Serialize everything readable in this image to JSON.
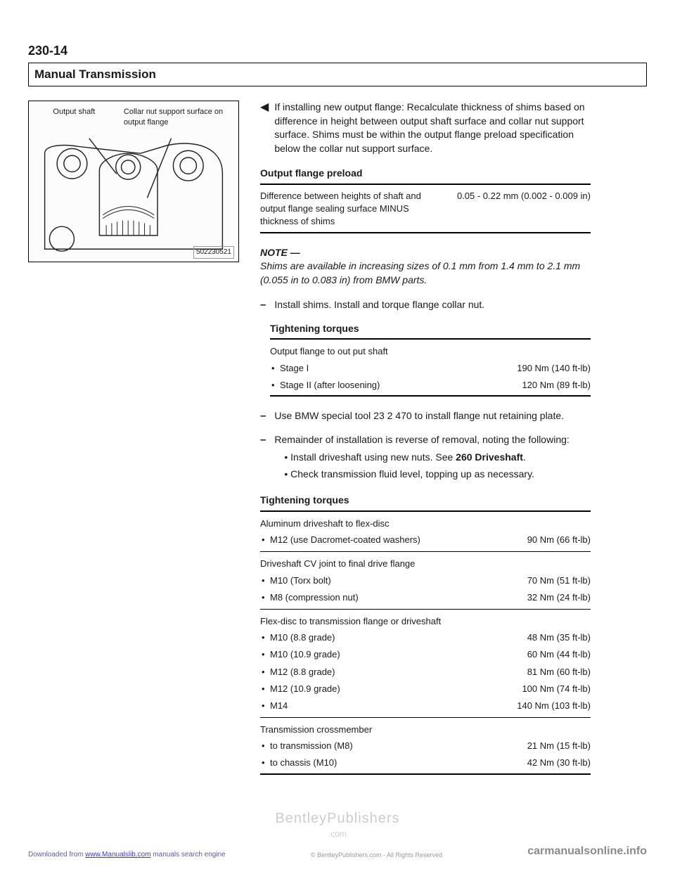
{
  "page_number": "230-14",
  "header": "Manual Transmission",
  "figure": {
    "label_left": "Output shaft",
    "label_right": "Collar nut support surface on output flange",
    "id": "502230521"
  },
  "arrow_para": "If installing new output flange: Recalculate thickness of shims based on difference in height between output shaft surface and collar nut support surface. Shims must be within the output flange preload specification below the collar nut support surface.",
  "preload": {
    "title": "Output flange preload",
    "label": "Difference between heights of shaft and output flange sealing surface MINUS thickness of shims",
    "value": "0.05 - 0.22 mm (0.002 - 0.009 in)"
  },
  "note": {
    "head": "NOTE —",
    "body": "Shims are available in increasing sizes of 0.1 mm from 1.4 mm to 2.1 mm (0.055 in to 0.083 in) from BMW parts."
  },
  "dash1": "Install shims. Install and torque flange collar nut.",
  "torques1": {
    "title": "Tightening torques",
    "subhead": "Output flange to out put shaft",
    "rows": [
      {
        "label": "Stage I",
        "value": "190 Nm (140 ft-lb)"
      },
      {
        "label": "Stage II (after loosening)",
        "value": "120 Nm (89 ft-lb)"
      }
    ]
  },
  "dash2": "Use BMW special tool 23 2 470 to install flange nut retaining plate.",
  "dash3": {
    "lead": "Remainder of installation is reverse of removal, noting the following:",
    "bullets": [
      "Install driveshaft using new nuts. See <b>260 Driveshaft</b>.",
      "Check transmission fluid level, topping up as necessary."
    ]
  },
  "torques2": {
    "title": "Tightening torques",
    "groups": [
      {
        "subhead": "Aluminum driveshaft to flex-disc",
        "rows": [
          {
            "label": "M12 (use Dacromet-coated washers)",
            "value": "90 Nm (66 ft-lb)"
          }
        ]
      },
      {
        "subhead": "Driveshaft CV joint to final drive flange",
        "rows": [
          {
            "label": "M10 (Torx bolt)",
            "value": "70 Nm (51 ft-lb)"
          },
          {
            "label": "M8 (compression nut)",
            "value": "32 Nm (24 ft-lb)"
          }
        ]
      },
      {
        "subhead": "Flex-disc to transmission flange or driveshaft",
        "rows": [
          {
            "label": "M10 (8.8 grade)",
            "value": "48 Nm (35 ft-lb)"
          },
          {
            "label": "M10 (10.9 grade)",
            "value": "60 Nm (44 ft-lb)"
          },
          {
            "label": "M12 (8.8 grade)",
            "value": "81 Nm (60 ft-lb)"
          },
          {
            "label": "M12 (10.9 grade)",
            "value": "100 Nm (74 ft-lb)"
          },
          {
            "label": "M14",
            "value": "140 Nm (103 ft-lb)"
          }
        ]
      },
      {
        "subhead": "Transmission crossmember",
        "rows": [
          {
            "label": "to transmission (M8)",
            "value": "21 Nm (15 ft-lb)"
          },
          {
            "label": "to chassis (M10)",
            "value": "42 Nm (30 ft-lb)"
          }
        ]
      }
    ]
  },
  "watermark": {
    "line1": "BentleyPublishers",
    "line2": ".com"
  },
  "footer": {
    "left_pre": "Downloaded from ",
    "left_link": "www.Manualslib.com",
    "left_post": " manuals search engine",
    "center": "© BentleyPublishers.com - All Rights Reserved",
    "right": "carmanualsonline.info"
  }
}
